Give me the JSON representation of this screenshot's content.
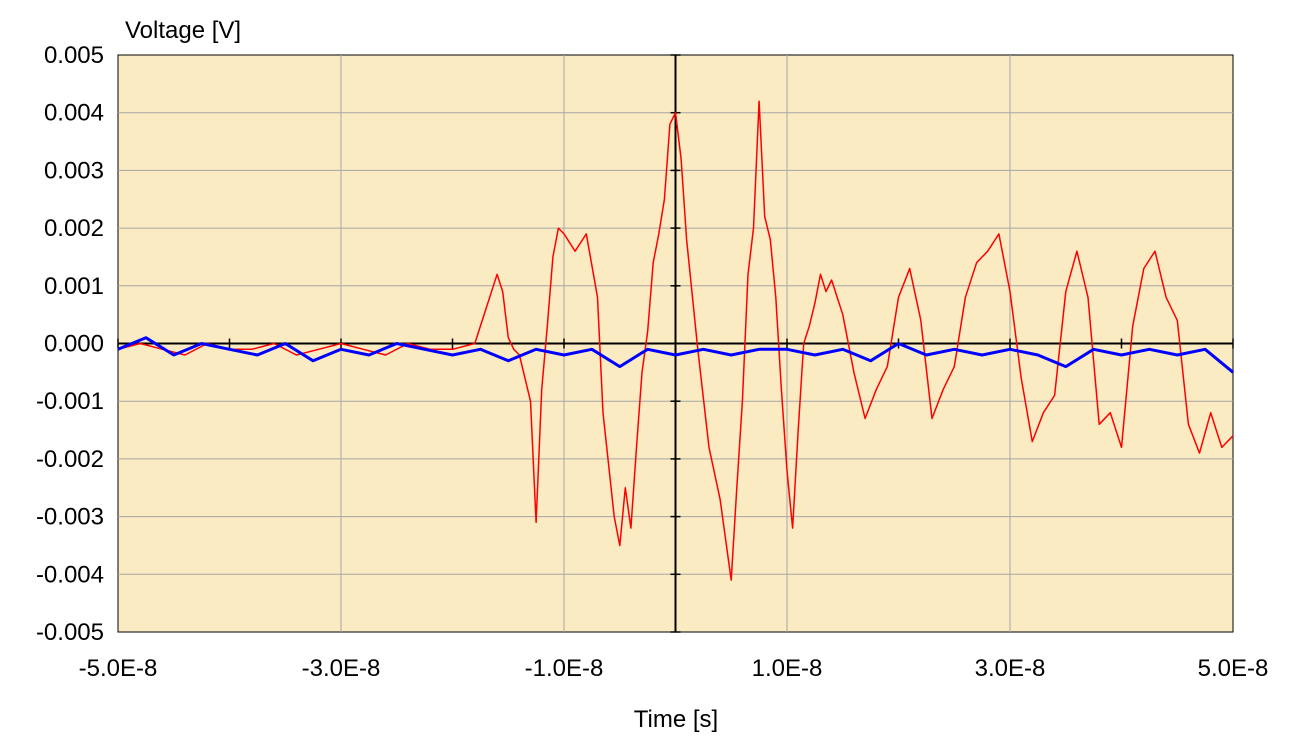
{
  "chart_data": {
    "type": "line",
    "title": "",
    "ylabel": "Voltage [V]",
    "xlabel": "Time [s]",
    "xlim": [
      -5e-08,
      5e-08
    ],
    "ylim": [
      -0.005,
      0.005
    ],
    "x_ticks": [
      -5e-08,
      -3e-08,
      -1e-08,
      1e-08,
      3e-08,
      5e-08
    ],
    "x_tick_labels": [
      "-5.0E-8",
      "-3.0E-8",
      "-1.0E-8",
      "1.0E-8",
      "3.0E-8",
      "5.0E-8"
    ],
    "x_gridlines": [
      -3e-08,
      -1e-08,
      1e-08,
      3e-08
    ],
    "y_ticks": [
      0.005,
      0.004,
      0.003,
      0.002,
      0.001,
      0.0,
      -0.001,
      -0.002,
      -0.003,
      -0.004,
      -0.005
    ],
    "y_tick_labels": [
      "0.005",
      "0.004",
      "0.003",
      "0.002",
      "0.001",
      "0.000",
      "-0.001",
      "-0.002",
      "-0.003",
      "-0.004",
      "-0.005"
    ],
    "grid": true,
    "legend": "none",
    "plot_background": "#FAEBC3",
    "grid_color": "#A6A6A6",
    "series": [
      {
        "color": "#FF0000",
        "line_width": 1.5,
        "x": [
          -5e-08,
          -4.8e-08,
          -4.6e-08,
          -4.4e-08,
          -4.2e-08,
          -4e-08,
          -3.8e-08,
          -3.6e-08,
          -3.4e-08,
          -3.2e-08,
          -3e-08,
          -2.8e-08,
          -2.6e-08,
          -2.4e-08,
          -2.2e-08,
          -2e-08,
          -1.8e-08,
          -1.6e-08,
          -1.55e-08,
          -1.5e-08,
          -1.45e-08,
          -1.4e-08,
          -1.3e-08,
          -1.25e-08,
          -1.2e-08,
          -1.15e-08,
          -1.1e-08,
          -1.05e-08,
          -1e-08,
          -9e-09,
          -8e-09,
          -7e-09,
          -6.5e-09,
          -6e-09,
          -5.5e-09,
          -5e-09,
          -4.5e-09,
          -4e-09,
          -3.5e-09,
          -3e-09,
          -2.5e-09,
          -2e-09,
          -1.5e-09,
          -1e-09,
          -5e-10,
          0.0,
          5e-10,
          1e-09,
          2e-09,
          3e-09,
          4e-09,
          5e-09,
          5.5e-09,
          6e-09,
          6.5e-09,
          7e-09,
          7.5e-09,
          8e-09,
          8.5e-09,
          9e-09,
          9.5e-09,
          1e-08,
          1.05e-08,
          1.1e-08,
          1.15e-08,
          1.2e-08,
          1.25e-08,
          1.3e-08,
          1.35e-08,
          1.4e-08,
          1.5e-08,
          1.6e-08,
          1.7e-08,
          1.8e-08,
          1.9e-08,
          2e-08,
          2.1e-08,
          2.2e-08,
          2.3e-08,
          2.4e-08,
          2.5e-08,
          2.6e-08,
          2.7e-08,
          2.8e-08,
          2.9e-08,
          3e-08,
          3.1e-08,
          3.2e-08,
          3.3e-08,
          3.4e-08,
          3.5e-08,
          3.6e-08,
          3.7e-08,
          3.8e-08,
          3.9e-08,
          4e-08,
          4.1e-08,
          4.2e-08,
          4.3e-08,
          4.4e-08,
          4.5e-08,
          4.6e-08,
          4.7e-08,
          4.8e-08,
          4.9e-08,
          5e-08
        ],
        "y": [
          -0.0001,
          0.0,
          -0.0001,
          -0.0002,
          0.0,
          -0.0001,
          -0.0001,
          0.0,
          -0.0002,
          -0.0001,
          0.0,
          -0.0001,
          -0.0002,
          0.0,
          -0.0001,
          -0.0001,
          0.0,
          0.0012,
          0.0009,
          0.0001,
          -0.0001,
          -0.0002,
          -0.001,
          -0.0031,
          -0.0008,
          0.0003,
          0.0015,
          0.002,
          0.0019,
          0.0016,
          0.0019,
          0.0008,
          -0.0012,
          -0.0021,
          -0.003,
          -0.0035,
          -0.0025,
          -0.0032,
          -0.0018,
          -0.0005,
          0.0002,
          0.0014,
          0.0019,
          0.0025,
          0.0038,
          0.004,
          0.0032,
          0.0018,
          -0.0001,
          -0.0018,
          -0.0027,
          -0.0041,
          -0.0025,
          -0.001,
          0.0012,
          0.002,
          0.0042,
          0.0022,
          0.0018,
          0.0008,
          -0.0008,
          -0.0022,
          -0.0032,
          -0.0015,
          0.0,
          0.0003,
          0.0007,
          0.0012,
          0.0009,
          0.0011,
          0.0005,
          -0.0005,
          -0.0013,
          -0.0008,
          -0.0004,
          0.0008,
          0.0013,
          0.0004,
          -0.0013,
          -0.0008,
          -0.0004,
          0.0008,
          0.0014,
          0.0016,
          0.0019,
          0.0009,
          -0.0006,
          -0.0017,
          -0.0012,
          -0.0009,
          0.0009,
          0.0016,
          0.0008,
          -0.0014,
          -0.0012,
          -0.0018,
          0.0003,
          0.0013,
          0.0016,
          0.0008,
          0.0004,
          -0.0014,
          -0.0019,
          -0.0012,
          -0.0018,
          -0.0016
        ]
      },
      {
        "color": "#0000FF",
        "line_width": 3,
        "x": [
          -5e-08,
          -4.75e-08,
          -4.5e-08,
          -4.25e-08,
          -4e-08,
          -3.75e-08,
          -3.5e-08,
          -3.25e-08,
          -3e-08,
          -2.75e-08,
          -2.5e-08,
          -2.25e-08,
          -2e-08,
          -1.75e-08,
          -1.5e-08,
          -1.25e-08,
          -1e-08,
          -7.5e-09,
          -5e-09,
          -2.5e-09,
          0.0,
          2.5e-09,
          5e-09,
          7.5e-09,
          1e-08,
          1.25e-08,
          1.5e-08,
          1.75e-08,
          2e-08,
          2.25e-08,
          2.5e-08,
          2.75e-08,
          3e-08,
          3.25e-08,
          3.5e-08,
          3.75e-08,
          4e-08,
          4.25e-08,
          4.5e-08,
          4.75e-08,
          5e-08
        ],
        "y": [
          -0.0001,
          0.0001,
          -0.0002,
          0.0,
          -0.0001,
          -0.0002,
          0.0,
          -0.0003,
          -0.0001,
          -0.0002,
          0.0,
          -0.0001,
          -0.0002,
          -0.0001,
          -0.0003,
          -0.0001,
          -0.0002,
          -0.0001,
          -0.0004,
          -0.0001,
          -0.0002,
          -0.0001,
          -0.0002,
          -0.0001,
          -0.0001,
          -0.0002,
          -0.0001,
          -0.0003,
          0.0,
          -0.0002,
          -0.0001,
          -0.0002,
          -0.0001,
          -0.0002,
          -0.0004,
          -0.0001,
          -0.0002,
          -0.0001,
          -0.0002,
          -0.0001,
          -0.0005
        ]
      }
    ]
  }
}
